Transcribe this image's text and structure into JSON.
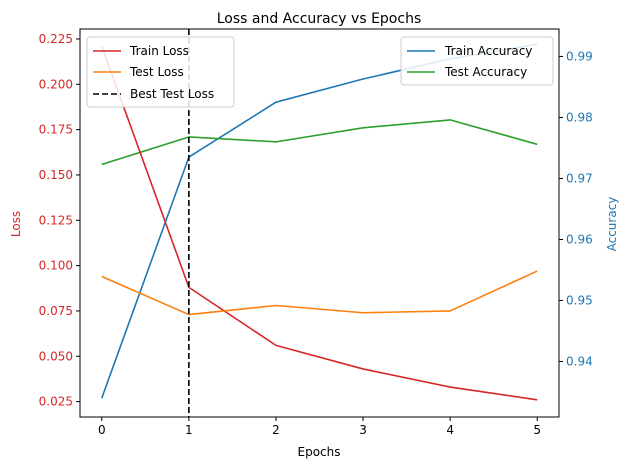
{
  "chart_data": {
    "type": "line",
    "title": "Loss and Accuracy vs Epochs",
    "xlabel": "Epochs",
    "ylabel_left": "Loss",
    "ylabel_right": "Accuracy",
    "x": [
      0,
      1,
      2,
      3,
      4,
      5
    ],
    "xlim": [
      -0.25,
      5.25
    ],
    "x_ticks": [
      "0",
      "1",
      "2",
      "3",
      "4",
      "5"
    ],
    "ylim_left": [
      0.0165,
      0.2305
    ],
    "ylim_right": [
      0.9309,
      0.9945
    ],
    "y_ticks_left": [
      "0.025",
      "0.050",
      "0.075",
      "0.100",
      "0.125",
      "0.150",
      "0.175",
      "0.200",
      "0.225"
    ],
    "y_ticks_right": [
      "0.94",
      "0.95",
      "0.96",
      "0.97",
      "0.98",
      "0.99"
    ],
    "left_axis_color": "#d62728",
    "right_axis_color": "#1f77b4",
    "grid": false,
    "series_left": [
      {
        "name": "Train Loss",
        "color": "#d62728",
        "values": [
          0.221,
          0.088,
          0.056,
          0.043,
          0.033,
          0.026
        ]
      },
      {
        "name": "Test Loss",
        "color": "#ff7f0e",
        "values": [
          0.094,
          0.073,
          0.078,
          0.074,
          0.075,
          0.097
        ]
      }
    ],
    "series_right": [
      {
        "name": "Train Accuracy",
        "color": "#1f77b4",
        "values": [
          0.934,
          0.9735,
          0.9825,
          0.9863,
          0.9896,
          0.992
        ]
      },
      {
        "name": "Test Accuracy",
        "color": "#2ca02c",
        "values": [
          0.9723,
          0.9768,
          0.976,
          0.9783,
          0.9796,
          0.9756
        ]
      }
    ],
    "vline": {
      "name": "Best Test Loss",
      "x": 1,
      "color": "#000000",
      "style": "dashed"
    },
    "legend_left": {
      "placement": "top-left",
      "entries": [
        "Train Loss",
        "Test Loss",
        "Best Test Loss"
      ]
    },
    "legend_right": {
      "placement": "top-right",
      "entries": [
        "Train Accuracy",
        "Test Accuracy"
      ]
    }
  }
}
